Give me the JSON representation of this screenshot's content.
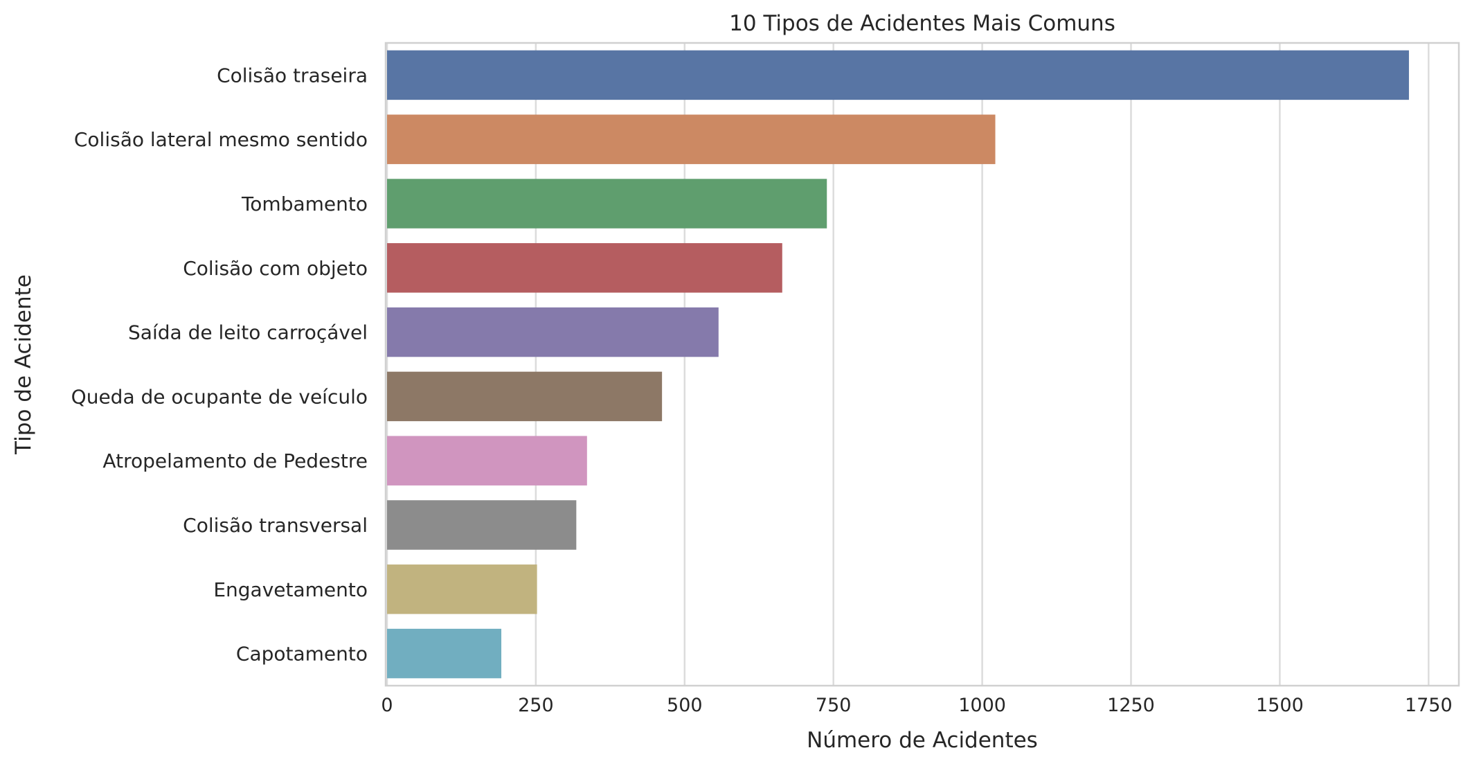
{
  "chart_data": {
    "type": "bar",
    "orientation": "horizontal",
    "title": "10 Tipos de Acidentes Mais Comuns",
    "xlabel": "Número de Acidentes",
    "ylabel": "Tipo de Acidente",
    "xlim": [
      0,
      1800
    ],
    "xticks": [
      0,
      250,
      500,
      750,
      1000,
      1250,
      1500,
      1750
    ],
    "grid": true,
    "categories": [
      "Colisão traseira",
      "Colisão lateral mesmo sentido",
      "Tombamento",
      "Colisão com objeto",
      "Saída de leito carroçável",
      "Queda de ocupante de veículo",
      "Atropelamento de Pedestre",
      "Colisão transversal",
      "Engavetamento",
      "Capotamento"
    ],
    "values": [
      1717,
      1022,
      739,
      664,
      557,
      462,
      336,
      318,
      252,
      192
    ],
    "colors": [
      "#5875a4",
      "#cc8963",
      "#5f9e6e",
      "#b55d60",
      "#857aab",
      "#8d7866",
      "#d095bf",
      "#8c8c8c",
      "#c1b37f",
      "#71aec0"
    ]
  }
}
